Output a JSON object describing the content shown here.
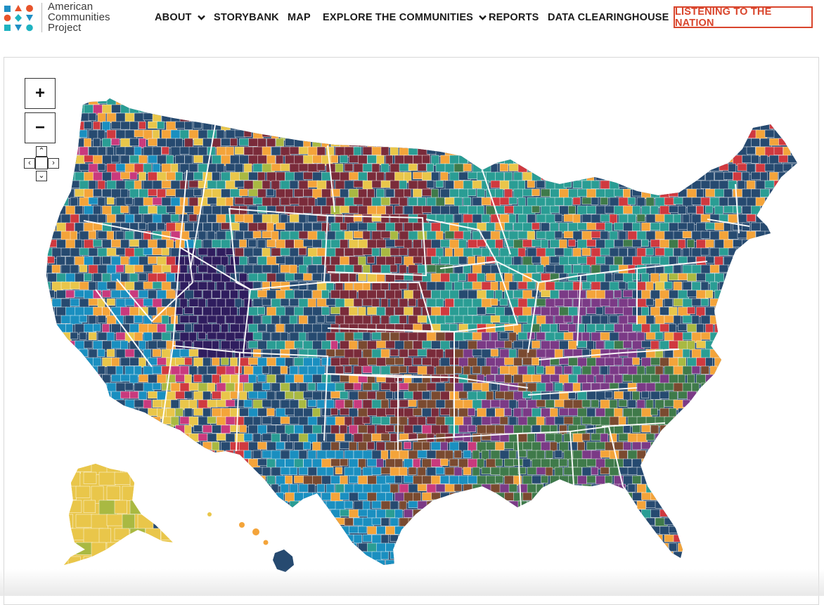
{
  "brand": {
    "name_lines": [
      "American",
      "Communities",
      "Project"
    ],
    "logo_colors": [
      "#1f8fc4",
      "#e8542c",
      "#e8542c",
      "#e8542c",
      "#1fb3c1",
      "#1f8fc4",
      "#1fb3c1",
      "#1f8fc4",
      "#1fb3c1"
    ]
  },
  "nav": {
    "items": [
      {
        "label": "ABOUT",
        "has_dropdown": true
      },
      {
        "label": "STORYBANK",
        "has_dropdown": false
      },
      {
        "label": "MAP",
        "has_dropdown": false
      },
      {
        "label": "EXPLORE THE COMMUNITIES",
        "has_dropdown": true
      },
      {
        "label": "REPORTS",
        "has_dropdown": false
      },
      {
        "label": "DATA CLEARINGHOUSE",
        "has_dropdown": false
      }
    ],
    "cta_label": "LISTENING TO THE NATION"
  },
  "map_controls": {
    "zoom_in": "+",
    "zoom_out": "−",
    "pan_up": "⌃",
    "pan_down": "⌄",
    "pan_left": "‹",
    "pan_right": "›"
  },
  "map": {
    "type": "choropleth",
    "region": "United States counties",
    "palette": {
      "navy": "#264a70",
      "maroon": "#7a2b3a",
      "teal": "#2a9d94",
      "purple": "#7b3a86",
      "green": "#3f7a4a",
      "brown": "#7a4a30",
      "blue": "#1a8fc0",
      "orange": "#f4a43a",
      "yellow": "#e9c64a",
      "red": "#d0393f",
      "magenta": "#c93a7d",
      "lime": "#a9b942",
      "deep_purple": "#2f1d5e"
    }
  }
}
